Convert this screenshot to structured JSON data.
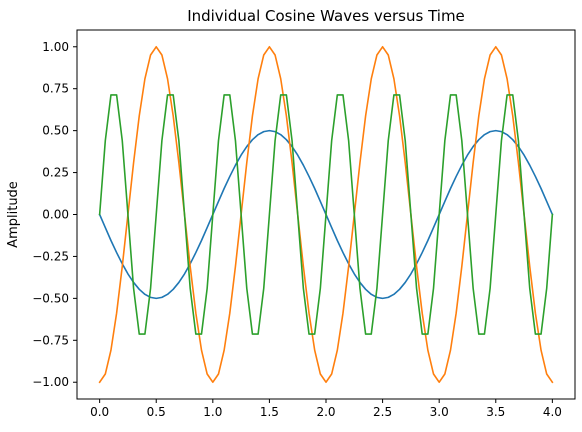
{
  "chart_data": {
    "type": "line",
    "title": "Individual Cosine Waves versus Time",
    "xlabel": "",
    "ylabel": "Amplitude",
    "xlim": [
      -0.2,
      4.2
    ],
    "ylim": [
      -1.1,
      1.1
    ],
    "grid": false,
    "legend": "none",
    "x_ticks": [
      0.0,
      0.5,
      1.0,
      1.5,
      2.0,
      2.5,
      3.0,
      3.5,
      4.0
    ],
    "x_tick_labels": [
      "0.0",
      "0.5",
      "1.0",
      "1.5",
      "2.0",
      "2.5",
      "3.0",
      "3.5",
      "4.0"
    ],
    "y_ticks": [
      -1.0,
      -0.75,
      -0.5,
      -0.25,
      0.0,
      0.25,
      0.5,
      0.75,
      1.0
    ],
    "y_tick_labels": [
      "−1.00",
      "−0.75",
      "−0.50",
      "−0.25",
      "0.00",
      "0.25",
      "0.50",
      "0.75",
      "1.00"
    ],
    "x": [
      0.0,
      0.05,
      0.1,
      0.15,
      0.2,
      0.25,
      0.3,
      0.35,
      0.4,
      0.45,
      0.5,
      0.55,
      0.6,
      0.65,
      0.7,
      0.75,
      0.8,
      0.85,
      0.9,
      0.95,
      1.0,
      1.05,
      1.1,
      1.15,
      1.2,
      1.25,
      1.3,
      1.35,
      1.4,
      1.45,
      1.5,
      1.55,
      1.6,
      1.65,
      1.7,
      1.75,
      1.8,
      1.85,
      1.9,
      1.95,
      2.0,
      2.05,
      2.1,
      2.15,
      2.2,
      2.25,
      2.3,
      2.35,
      2.4,
      2.45,
      2.5,
      2.55,
      2.6,
      2.65,
      2.7,
      2.75,
      2.8,
      2.85,
      2.9,
      2.95,
      3.0,
      3.05,
      3.1,
      3.15,
      3.2,
      3.25,
      3.3,
      3.35,
      3.4,
      3.45,
      3.5,
      3.55,
      3.6,
      3.65,
      3.7,
      3.75,
      3.8,
      3.85,
      3.9,
      3.95,
      4.0
    ],
    "series": [
      {
        "color": "#1f77b4",
        "values": [
          0.0,
          -0.078,
          -0.155,
          -0.227,
          -0.294,
          -0.354,
          -0.405,
          -0.446,
          -0.476,
          -0.494,
          -0.5,
          -0.494,
          -0.476,
          -0.446,
          -0.405,
          -0.354,
          -0.294,
          -0.227,
          -0.155,
          -0.078,
          0.0,
          0.078,
          0.155,
          0.227,
          0.294,
          0.354,
          0.405,
          0.446,
          0.476,
          0.494,
          0.5,
          0.494,
          0.476,
          0.446,
          0.405,
          0.354,
          0.294,
          0.227,
          0.155,
          0.078,
          0.0,
          -0.078,
          -0.155,
          -0.227,
          -0.294,
          -0.354,
          -0.405,
          -0.446,
          -0.476,
          -0.494,
          -0.5,
          -0.494,
          -0.476,
          -0.446,
          -0.405,
          -0.354,
          -0.294,
          -0.227,
          -0.155,
          -0.078,
          0.0,
          0.078,
          0.155,
          0.227,
          0.294,
          0.354,
          0.405,
          0.446,
          0.476,
          0.494,
          0.5,
          0.494,
          0.476,
          0.446,
          0.405,
          0.354,
          0.294,
          0.227,
          0.155,
          0.078,
          0.0
        ]
      },
      {
        "color": "#ff7f0e",
        "values": [
          -1.0,
          -0.951,
          -0.809,
          -0.588,
          -0.309,
          0.0,
          0.309,
          0.588,
          0.809,
          0.951,
          1.0,
          0.951,
          0.809,
          0.588,
          0.309,
          0.0,
          -0.309,
          -0.588,
          -0.809,
          -0.951,
          -1.0,
          -0.951,
          -0.809,
          -0.588,
          -0.309,
          0.0,
          0.309,
          0.588,
          0.809,
          0.951,
          1.0,
          0.951,
          0.809,
          0.588,
          0.309,
          0.0,
          -0.309,
          -0.588,
          -0.809,
          -0.951,
          -1.0,
          -0.951,
          -0.809,
          -0.588,
          -0.309,
          0.0,
          0.309,
          0.588,
          0.809,
          0.951,
          1.0,
          0.951,
          0.809,
          0.588,
          0.309,
          0.0,
          -0.309,
          -0.588,
          -0.809,
          -0.951,
          -1.0,
          -0.951,
          -0.809,
          -0.588,
          -0.309,
          0.0,
          0.309,
          0.588,
          0.809,
          0.951,
          1.0,
          0.951,
          0.809,
          0.588,
          0.309,
          0.0,
          -0.309,
          -0.588,
          -0.809,
          -0.951,
          -1.0
        ]
      },
      {
        "color": "#2ca02c",
        "values": [
          0.0,
          0.44,
          0.713,
          0.713,
          0.44,
          0.0,
          -0.44,
          -0.713,
          -0.713,
          -0.44,
          0.0,
          0.44,
          0.713,
          0.713,
          0.44,
          0.0,
          -0.44,
          -0.713,
          -0.713,
          -0.44,
          0.0,
          0.44,
          0.713,
          0.713,
          0.44,
          0.0,
          -0.44,
          -0.713,
          -0.713,
          -0.44,
          0.0,
          0.44,
          0.713,
          0.713,
          0.44,
          0.0,
          -0.44,
          -0.713,
          -0.713,
          -0.44,
          0.0,
          0.44,
          0.713,
          0.713,
          0.44,
          0.0,
          -0.44,
          -0.713,
          -0.713,
          -0.44,
          0.0,
          0.44,
          0.713,
          0.713,
          0.44,
          0.0,
          -0.44,
          -0.713,
          -0.713,
          -0.44,
          0.0,
          0.44,
          0.713,
          0.713,
          0.44,
          0.0,
          -0.44,
          -0.713,
          -0.713,
          -0.44,
          0.0,
          0.44,
          0.713,
          0.713,
          0.44,
          0.0,
          -0.44,
          -0.713,
          -0.713,
          -0.44,
          0.0
        ]
      }
    ]
  }
}
